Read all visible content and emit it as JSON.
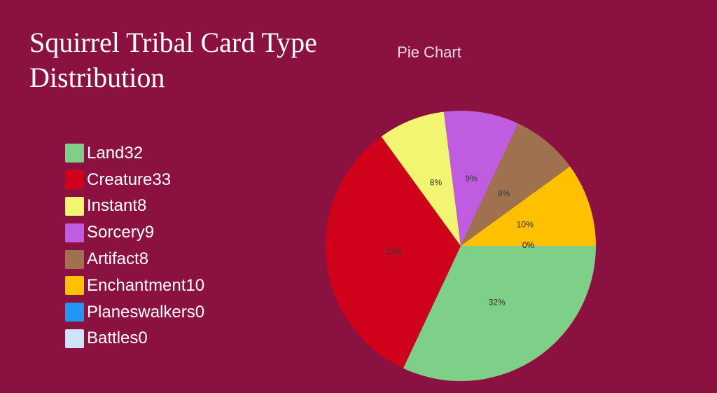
{
  "chart_data": {
    "type": "pie",
    "title": "Squirrel Tribal Card Type Distribution",
    "subtitle": "Pie Chart",
    "categories": [
      "Land",
      "Creature",
      "Instant",
      "Sorcery",
      "Artifact",
      "Enchantment",
      "Planeswalkers",
      "Battles"
    ],
    "values": [
      32,
      33,
      8,
      9,
      8,
      10,
      0,
      0
    ],
    "value_labels": [
      "32%",
      "33%",
      "8%",
      "9%",
      "8%",
      "10%",
      "0%",
      "0%"
    ],
    "colors": [
      "#7ecf88",
      "#d0021b",
      "#f1f571",
      "#c05ce0",
      "#a0714f",
      "#ffc000",
      "#2196f3",
      "#cde4f7"
    ]
  }
}
